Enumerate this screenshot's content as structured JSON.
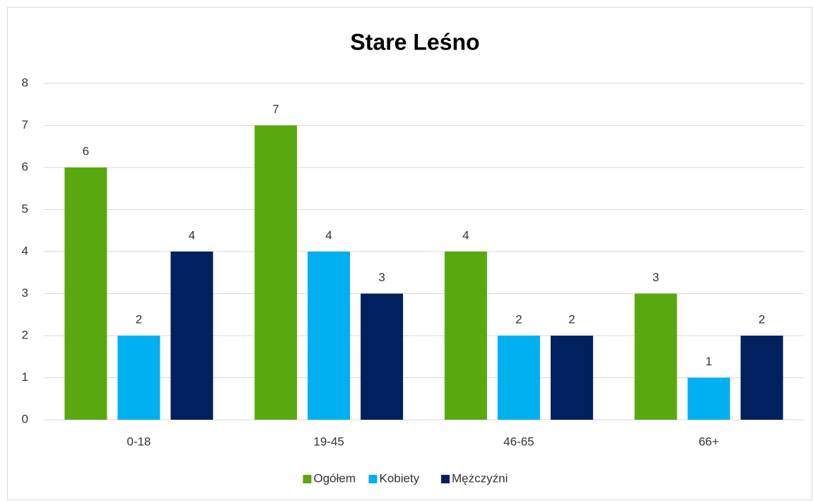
{
  "chart_data": {
    "type": "bar",
    "title": "Stare Leśno",
    "categories": [
      "0-18",
      "19-45",
      "46-65",
      "66+"
    ],
    "series": [
      {
        "name": "Ogółem",
        "color": "#5aa80f",
        "values": [
          6,
          7,
          4,
          3
        ]
      },
      {
        "name": "Kobiety",
        "color": "#00b0f0",
        "values": [
          2,
          4,
          2,
          1
        ]
      },
      {
        "name": "Mężczyźni",
        "color": "#002060",
        "values": [
          4,
          3,
          2,
          2
        ]
      }
    ],
    "ylim": [
      0,
      8
    ],
    "yticks": [
      0,
      1,
      2,
      3,
      4,
      5,
      6,
      7,
      8
    ],
    "grid": true,
    "legend": "bottom"
  }
}
